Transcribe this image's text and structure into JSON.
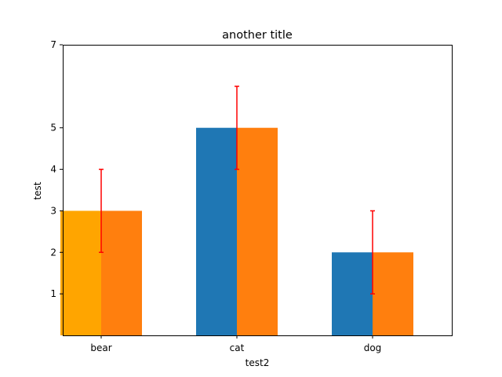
{
  "chart_data": {
    "type": "bar",
    "title": "another title",
    "xlabel": "test2",
    "ylabel": "test",
    "categories": [
      "bear",
      "cat",
      "dog"
    ],
    "ylim": [
      0,
      7
    ],
    "yticks": [
      1,
      2,
      3,
      4,
      5,
      7
    ],
    "grid": false,
    "legend": "none",
    "series": [
      {
        "values": [
          3,
          5,
          2
        ],
        "colors": [
          "#ffa500",
          "#1f77b4",
          "#1f77b4"
        ],
        "errors": [
          1,
          1,
          1
        ],
        "error_color": "#ff0000"
      },
      {
        "values": [
          3,
          5,
          2
        ],
        "colors": [
          "#ff7f0e",
          "#ff7f0e",
          "#ff7f0e"
        ]
      }
    ]
  }
}
